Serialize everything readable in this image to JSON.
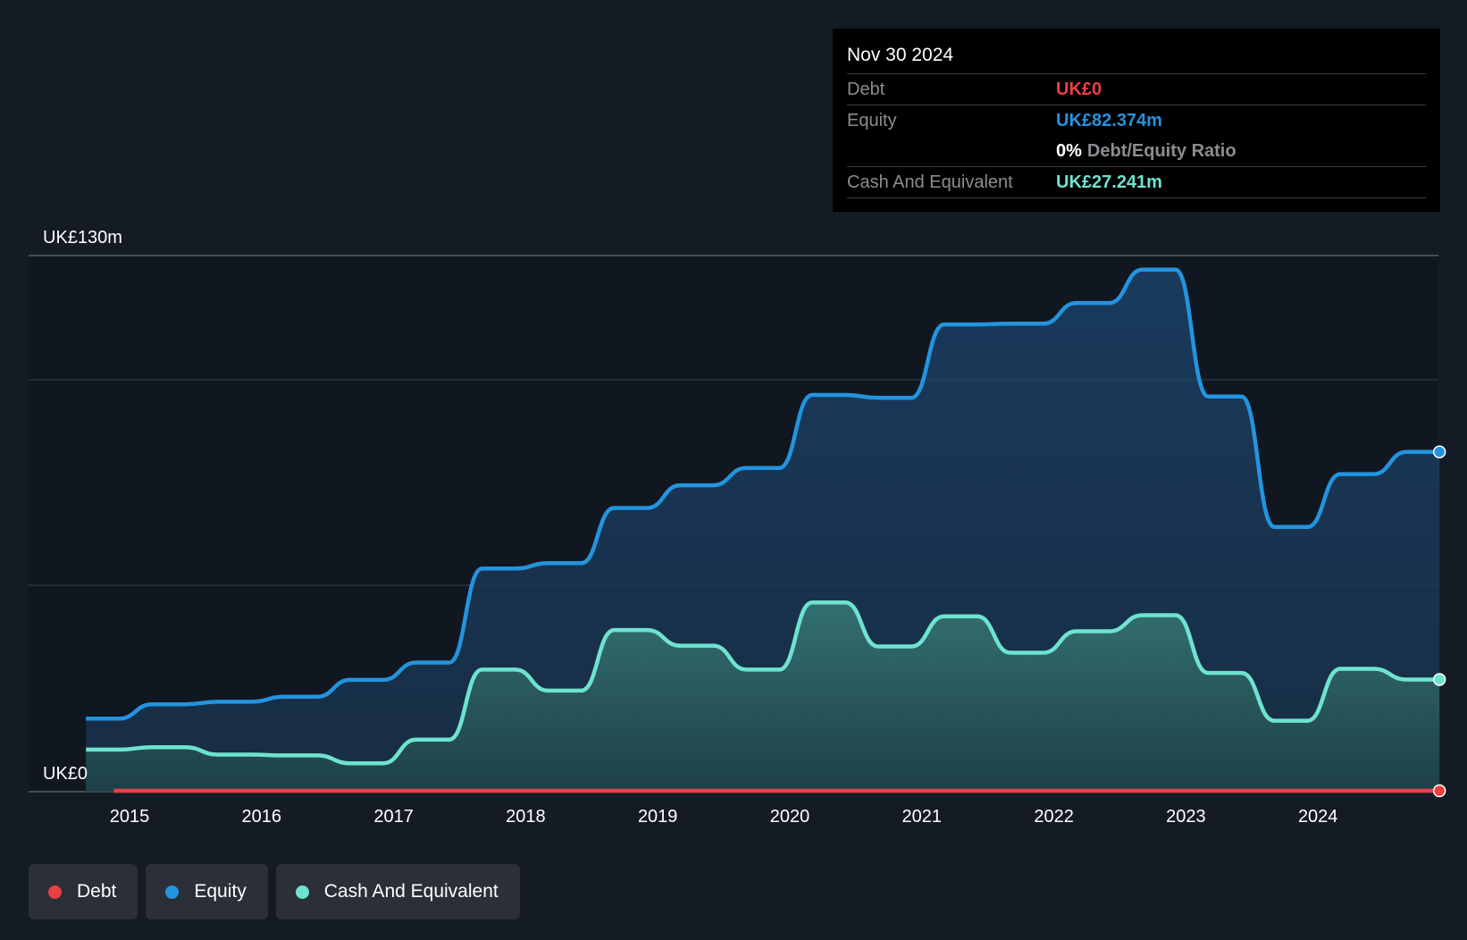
{
  "tooltip": {
    "date": "Nov 30 2024",
    "debt_label": "Debt",
    "debt_value": "UK£0",
    "equity_label": "Equity",
    "equity_value": "UK£82.374m",
    "ratio_value": "0%",
    "ratio_label": "Debt/Equity Ratio",
    "cash_label": "Cash And Equivalent",
    "cash_value": "UK£27.241m"
  },
  "legend": {
    "debt": "Debt",
    "equity": "Equity",
    "cash": "Cash And Equivalent"
  },
  "colors": {
    "background": "#151b24",
    "plot_background": "#111720",
    "debt": "#e84142",
    "equity": "#2394df",
    "cash": "#6de3d0"
  },
  "chart_data": {
    "type": "area",
    "ylim": [
      0,
      130
    ],
    "y_tick_labels": [
      "UK£0",
      "UK£130m"
    ],
    "x_tick_labels": [
      "2015",
      "2016",
      "2017",
      "2018",
      "2019",
      "2020",
      "2021",
      "2022",
      "2023",
      "2024"
    ],
    "grid": true,
    "legend_position": "bottom-left",
    "series": [
      {
        "name": "Debt",
        "x": [
          2014.88,
          2024.92
        ],
        "values": [
          0,
          0
        ]
      },
      {
        "name": "Equity",
        "x": [
          2014.67,
          2014.92,
          2015.17,
          2015.42,
          2015.67,
          2015.92,
          2016.17,
          2016.42,
          2016.67,
          2016.92,
          2017.17,
          2017.42,
          2017.67,
          2017.92,
          2018.17,
          2018.42,
          2018.67,
          2018.92,
          2019.17,
          2019.42,
          2019.67,
          2019.92,
          2020.17,
          2020.42,
          2020.67,
          2020.92,
          2021.17,
          2021.42,
          2021.67,
          2021.92,
          2022.17,
          2022.42,
          2022.67,
          2022.92,
          2023.17,
          2023.42,
          2023.67,
          2023.92,
          2024.17,
          2024.42,
          2024.67,
          2024.92
        ],
        "values": [
          17.7,
          17.7,
          21.2,
          21.2,
          21.8,
          21.8,
          23.0,
          23.0,
          27.1,
          27.1,
          31.3,
          31.3,
          54.1,
          54.1,
          55.4,
          55.4,
          68.8,
          68.8,
          74.3,
          74.3,
          78.5,
          78.5,
          96.2,
          96.2,
          95.5,
          95.5,
          113.3,
          113.3,
          113.5,
          113.5,
          118.5,
          118.5,
          126.6,
          126.6,
          95.8,
          95.8,
          64.2,
          64.2,
          77.0,
          77.0,
          82.4,
          82.4
        ]
      },
      {
        "name": "Cash And Equivalent",
        "x": [
          2014.67,
          2014.92,
          2015.17,
          2015.42,
          2015.67,
          2015.92,
          2016.17,
          2016.42,
          2016.67,
          2016.92,
          2017.17,
          2017.42,
          2017.67,
          2017.92,
          2018.17,
          2018.42,
          2018.67,
          2018.92,
          2019.17,
          2019.42,
          2019.67,
          2019.92,
          2020.17,
          2020.42,
          2020.67,
          2020.92,
          2021.17,
          2021.42,
          2021.67,
          2021.92,
          2022.17,
          2022.42,
          2022.67,
          2022.92,
          2023.17,
          2023.42,
          2023.67,
          2023.92,
          2024.17,
          2024.42,
          2024.67,
          2024.92
        ],
        "values": [
          10.2,
          10.2,
          10.8,
          10.8,
          9.0,
          9.0,
          8.8,
          8.8,
          6.9,
          6.9,
          12.6,
          12.6,
          29.6,
          29.6,
          24.5,
          24.5,
          39.2,
          39.2,
          35.4,
          35.4,
          29.6,
          29.6,
          45.9,
          45.9,
          35.2,
          35.2,
          42.5,
          42.5,
          33.7,
          33.7,
          38.9,
          38.9,
          42.8,
          42.8,
          28.8,
          28.8,
          17.2,
          17.2,
          29.8,
          29.8,
          27.2,
          27.2
        ]
      }
    ]
  }
}
